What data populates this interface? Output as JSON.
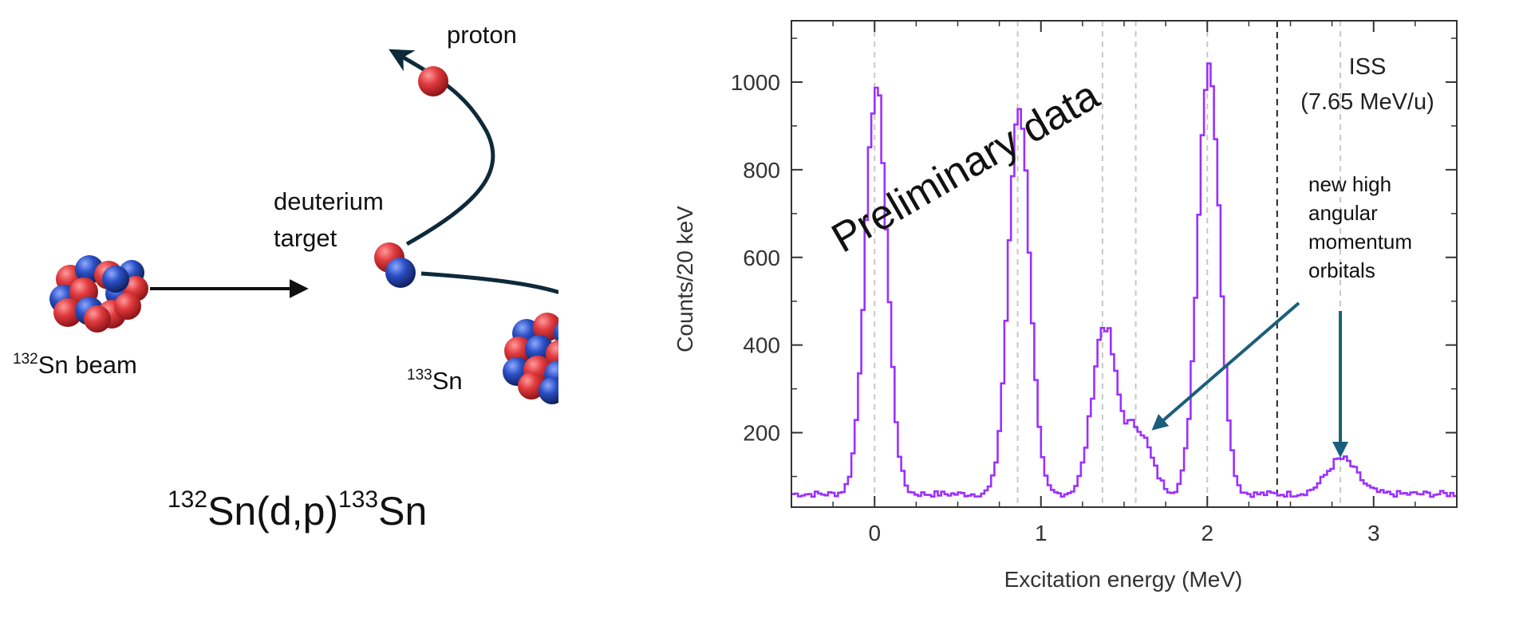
{
  "diagram": {
    "proton_label": "proton",
    "target_label_line1": "deuterium",
    "target_label_line2": "target",
    "beam_mass": "132",
    "beam_label": "Sn beam",
    "product_mass": "133",
    "product_label": "Sn",
    "reaction_mass_in": "132",
    "reaction_mid": "Sn(d,p)",
    "reaction_mass_out": "133",
    "reaction_end": "Sn",
    "colors": {
      "proton": "#e03a3e",
      "neutron": "#2a4fc4",
      "track": "#0e2a3a"
    }
  },
  "chart_data": {
    "type": "line",
    "xlabel": "Excitation energy (MeV)",
    "ylabel": "Counts/20 keV",
    "xlim": [
      -0.5,
      3.5
    ],
    "ylim": [
      30,
      1140
    ],
    "xticks": [
      "0",
      "1",
      "2",
      "3"
    ],
    "yticks": [
      "200",
      "400",
      "600",
      "800",
      "1000"
    ],
    "line_color": "#9b30ff",
    "background": 60,
    "peaks": [
      {
        "center": 0.0,
        "height": 930,
        "width": 0.065
      },
      {
        "center": 0.86,
        "height": 890,
        "width": 0.063
      },
      {
        "center": 1.37,
        "height": 380,
        "width": 0.07
      },
      {
        "center": 1.57,
        "height": 150,
        "width": 0.08
      },
      {
        "center": 2.0,
        "height": 990,
        "width": 0.065
      },
      {
        "center": 2.8,
        "height": 80,
        "width": 0.09
      }
    ],
    "reference_lines": [
      0.0,
      0.86,
      1.37,
      1.57,
      2.0,
      2.8
    ],
    "threshold_line": 2.42,
    "watermark": "Preliminary data",
    "facility_line1": "ISS",
    "facility_line2": "(7.65 MeV/u)",
    "annotation_lines": [
      "new high",
      "angular",
      "momentum",
      "orbitals"
    ],
    "annotation_arrow_color": "#1b5e7b"
  }
}
